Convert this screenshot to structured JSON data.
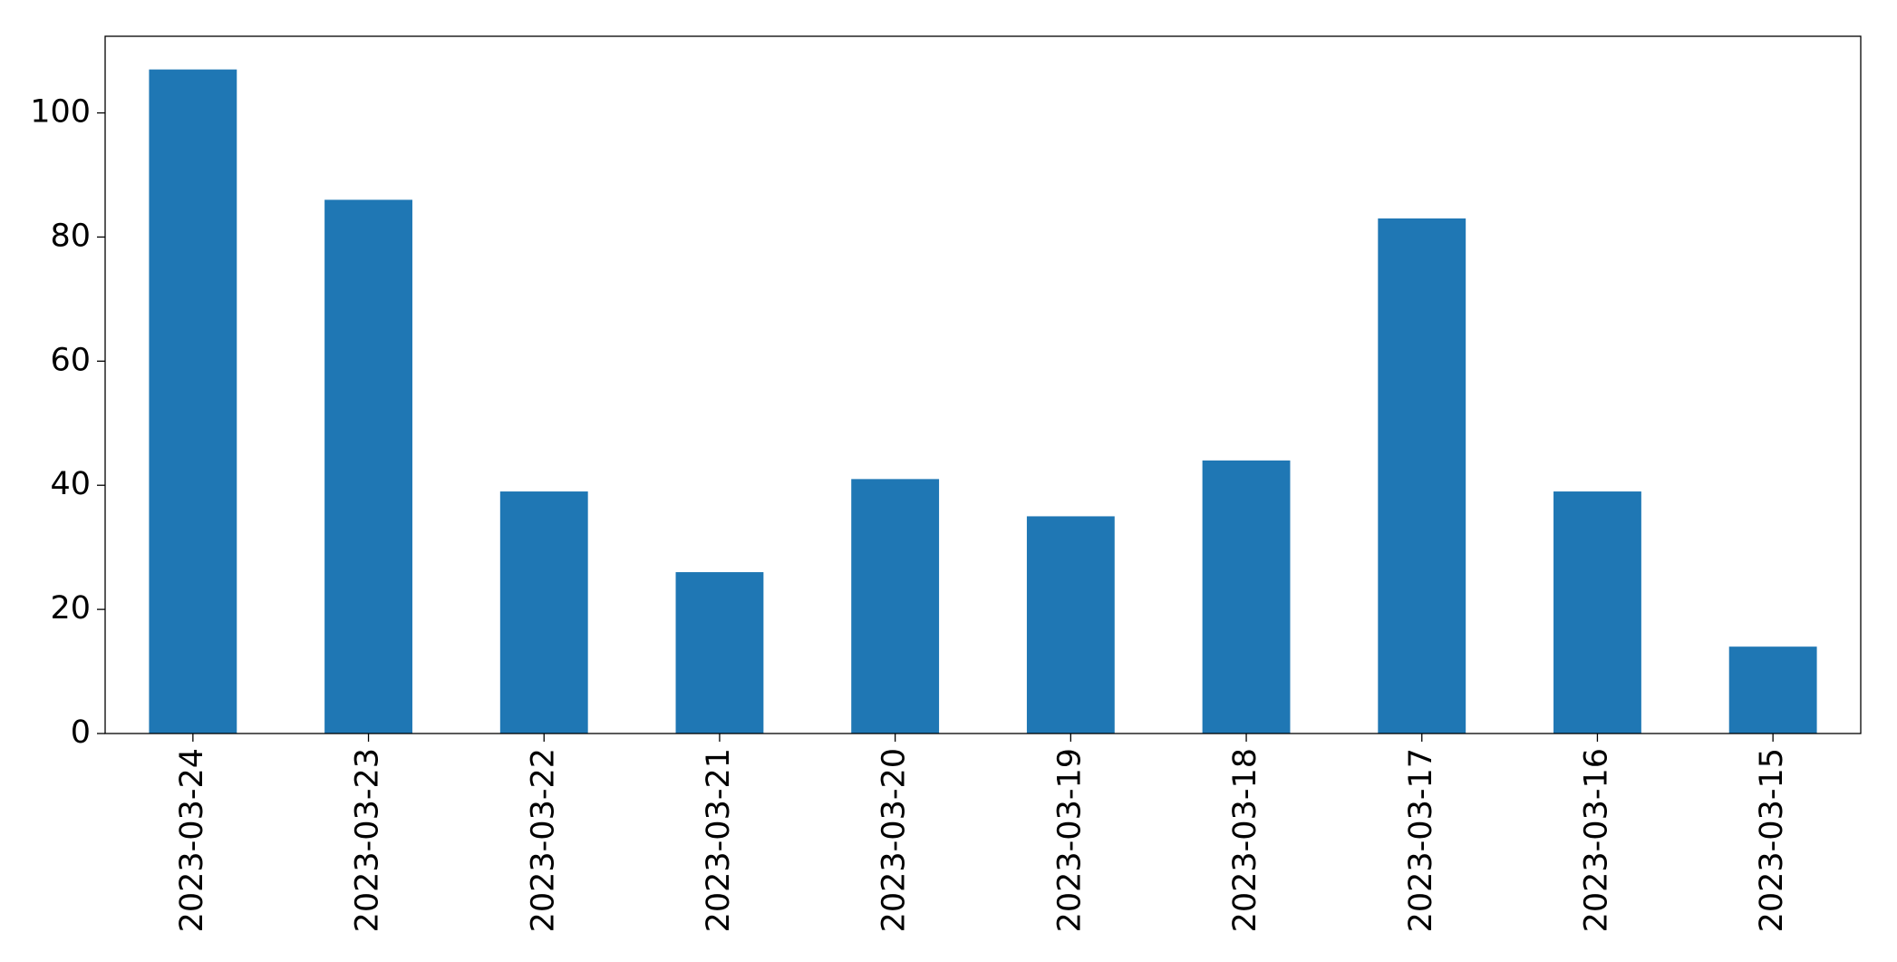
{
  "chart_data": {
    "type": "bar",
    "categories": [
      "2023-03-24",
      "2023-03-23",
      "2023-03-22",
      "2023-03-21",
      "2023-03-20",
      "2023-03-19",
      "2023-03-18",
      "2023-03-17",
      "2023-03-16",
      "2023-03-15"
    ],
    "values": [
      107,
      86,
      39,
      26,
      41,
      35,
      44,
      83,
      39,
      14
    ],
    "color": "#1f77b4",
    "ylim": [
      0,
      112.35
    ],
    "yticks": [
      0,
      20,
      40,
      60,
      80,
      100
    ],
    "grid": false
  }
}
